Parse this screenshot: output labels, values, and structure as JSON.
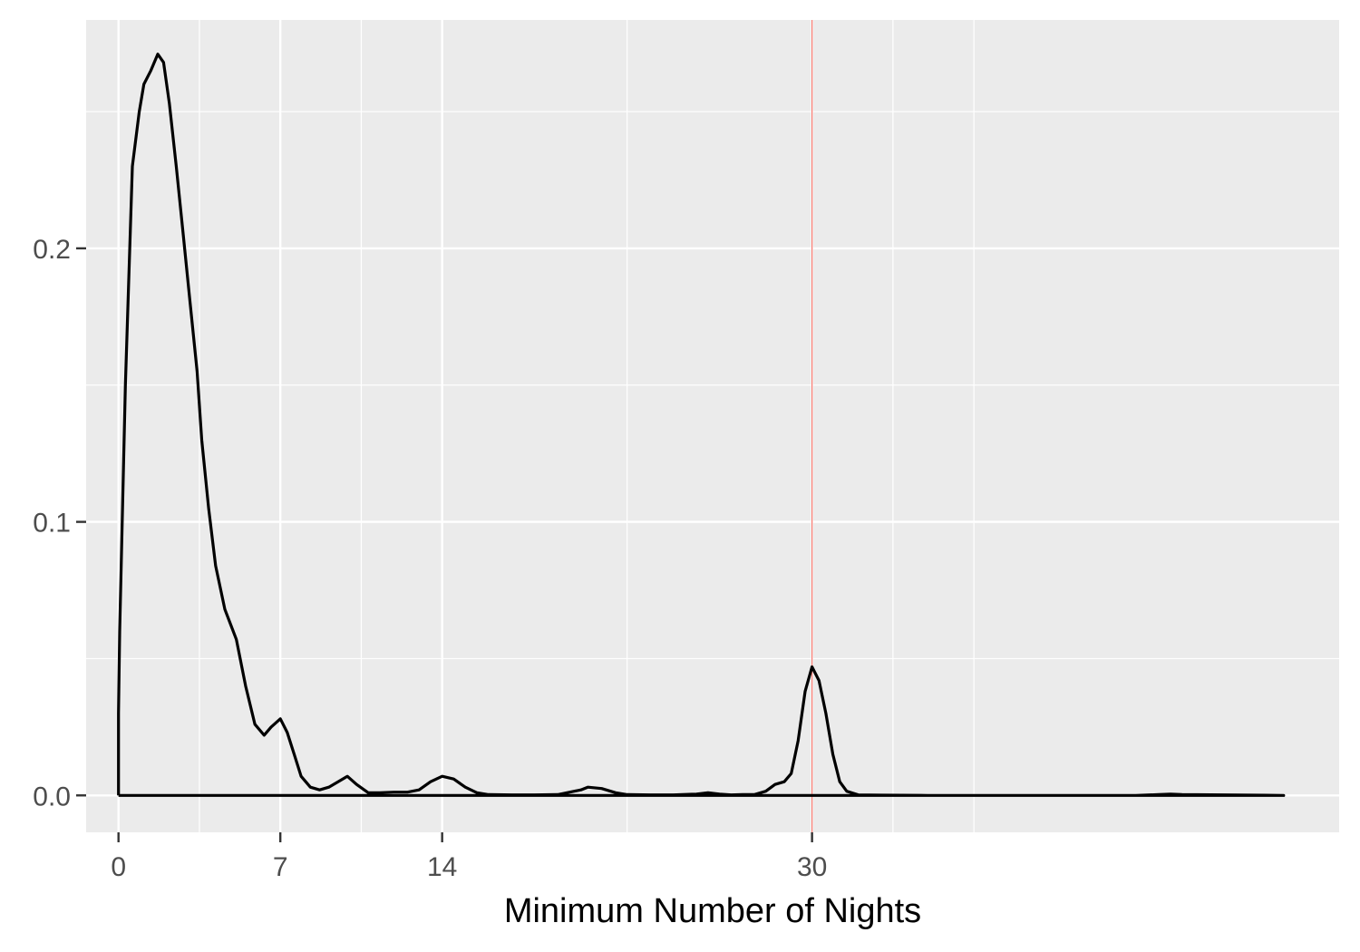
{
  "chart_data": {
    "type": "line",
    "title": "",
    "xlabel": "Minimum Number of Nights",
    "ylabel": "",
    "xlim": [
      -1.4,
      52.8
    ],
    "ylim": [
      -0.0135,
      0.2835
    ],
    "x_ticks": [
      {
        "value": 0,
        "label": "0"
      },
      {
        "value": 7,
        "label": "7"
      },
      {
        "value": 14,
        "label": "14"
      },
      {
        "value": 30,
        "label": "30"
      }
    ],
    "x_minor_gridlines": [
      3.5,
      10.5,
      22,
      33.5,
      37
    ],
    "y_ticks": [
      {
        "value": 0.0,
        "label": "0.0"
      },
      {
        "value": 0.1,
        "label": "0.1"
      },
      {
        "value": 0.2,
        "label": "0.2"
      }
    ],
    "y_minor_gridlines": [
      0.05,
      0.15,
      0.25
    ],
    "grid": true,
    "background_color": "#ebebeb",
    "gridline_color": "#ffffff",
    "line_color": "#000000",
    "reference_line": {
      "x": 30,
      "color": "#f8766d"
    },
    "series": [
      {
        "x": [
          0,
          0,
          0.05,
          0.3,
          0.6,
          0.9,
          1.1,
          1.4,
          1.7,
          1.95,
          2.2,
          2.5,
          2.8,
          3.1,
          3.4,
          3.6,
          3.9,
          4.2,
          4.6,
          5.1,
          5.5,
          5.9,
          6.3,
          6.6,
          7.0,
          7.3,
          7.6,
          7.9,
          8.3,
          8.7,
          9.1,
          9.5,
          9.9,
          10.3,
          10.8,
          11.3,
          11.9,
          12.5,
          13.0,
          13.5,
          14.0,
          14.5,
          15.0,
          15.5,
          16.0,
          17.0,
          18.0,
          19.0,
          20.0,
          20.3,
          20.9,
          21.5,
          22.0,
          23.0,
          24.0,
          25.0,
          25.5,
          26.0,
          26.5,
          27.0,
          27.5,
          28.0,
          28.4,
          28.8,
          29.1,
          29.4,
          29.7,
          30.0,
          30.3,
          30.6,
          30.9,
          31.2,
          31.5,
          32.0,
          33.0,
          35.0,
          40.0,
          44.0,
          45.0,
          45.5,
          46.0,
          50.4,
          50.4,
          0
        ],
        "y": [
          0,
          0.03,
          0.06,
          0.15,
          0.23,
          0.25,
          0.26,
          0.265,
          0.271,
          0.268,
          0.253,
          0.23,
          0.205,
          0.18,
          0.155,
          0.13,
          0.105,
          0.084,
          0.068,
          0.057,
          0.04,
          0.026,
          0.022,
          0.025,
          0.028,
          0.023,
          0.015,
          0.007,
          0.003,
          0.002,
          0.003,
          0.005,
          0.007,
          0.004,
          0.001,
          0.001,
          0.0012,
          0.0012,
          0.002,
          0.005,
          0.007,
          0.006,
          0.003,
          0.001,
          0.0003,
          0.0002,
          0.0002,
          0.0003,
          0.002,
          0.003,
          0.0025,
          0.001,
          0.0003,
          0.0002,
          0.0002,
          0.0005,
          0.001,
          0.0005,
          0.0002,
          0.0003,
          0.0003,
          0.0015,
          0.004,
          0.005,
          0.008,
          0.02,
          0.038,
          0.047,
          0.042,
          0.03,
          0.015,
          0.005,
          0.0015,
          0.0002,
          0.0001,
          0.0,
          0.0,
          0.0,
          0.0003,
          0.0005,
          0.0003,
          0.0,
          0,
          0
        ]
      }
    ]
  }
}
